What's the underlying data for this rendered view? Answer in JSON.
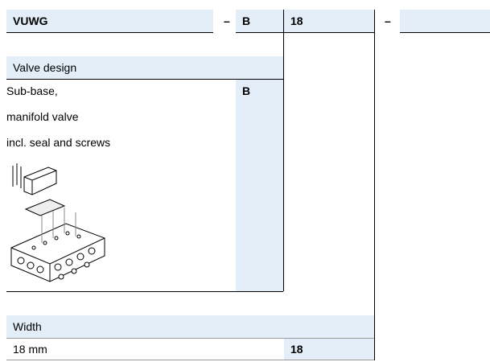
{
  "header": {
    "cells": [
      "VUWG",
      "–",
      "B",
      "18",
      "–"
    ]
  },
  "valve_design": {
    "title": "Valve design",
    "lines": [
      "Sub-base,",
      "manifold valve",
      "incl. seal and screws"
    ],
    "code": "B"
  },
  "width": {
    "title": "Width",
    "option": "18 mm",
    "code": "18"
  }
}
